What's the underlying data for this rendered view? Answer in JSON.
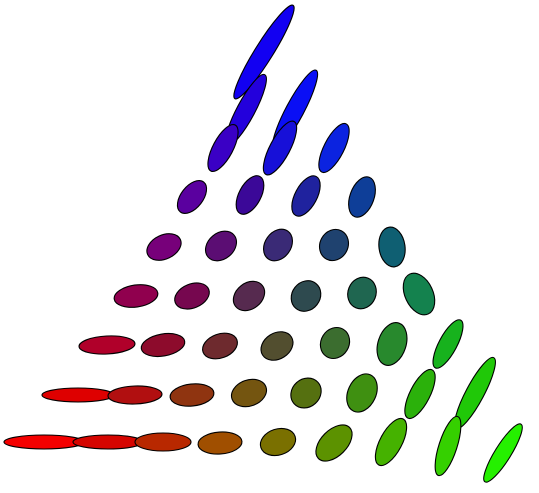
{
  "figure": {
    "background": "#ffffff",
    "outline_color": "#000000",
    "rows": [
      {
        "row": 1,
        "ellipses": [
          {
            "color": "#1200f2"
          }
        ]
      },
      {
        "row": 2,
        "ellipses": [
          {
            "color": "#2300dc"
          },
          {
            "color": "#0a0ff5"
          }
        ]
      },
      {
        "row": 3,
        "ellipses": [
          {
            "color": "#3a00c5"
          },
          {
            "color": "#1710d8"
          },
          {
            "color": "#0b23e0"
          }
        ]
      },
      {
        "row": 4,
        "ellipses": [
          {
            "color": "#5a009f"
          },
          {
            "color": "#3b0898"
          },
          {
            "color": "#1f229e"
          },
          {
            "color": "#0e3e98"
          }
        ]
      },
      {
        "row": 5,
        "ellipses": [
          {
            "color": "#77007a"
          },
          {
            "color": "#5b0d73"
          },
          {
            "color": "#3a2a76"
          },
          {
            "color": "#1f426f"
          },
          {
            "color": "#0f5f72"
          }
        ]
      },
      {
        "row": 6,
        "ellipses": [
          {
            "color": "#90004e"
          },
          {
            "color": "#76074f"
          },
          {
            "color": "#562a4f"
          },
          {
            "color": "#2e4a4f"
          },
          {
            "color": "#1f6650"
          },
          {
            "color": "#14824e"
          }
        ]
      },
      {
        "row": 7,
        "ellipses": [
          {
            "color": "#b0002a"
          },
          {
            "color": "#8d0b2c"
          },
          {
            "color": "#6e2a2e"
          },
          {
            "color": "#524e2f"
          },
          {
            "color": "#3b6d2f"
          },
          {
            "color": "#28892d"
          },
          {
            "color": "#17b21d"
          }
        ]
      },
      {
        "row": 8,
        "ellipses": [
          {
            "color": "#de0000"
          },
          {
            "color": "#b10f10"
          },
          {
            "color": "#8f3410"
          },
          {
            "color": "#745510"
          },
          {
            "color": "#557010"
          },
          {
            "color": "#3f9011"
          },
          {
            "color": "#2bb10b"
          },
          {
            "color": "#20c808"
          }
        ]
      },
      {
        "row": 9,
        "ellipses": [
          {
            "color": "#f40000"
          },
          {
            "color": "#d50500"
          },
          {
            "color": "#b82800"
          },
          {
            "color": "#a04f00"
          },
          {
            "color": "#7a7000"
          },
          {
            "color": "#5c9200"
          },
          {
            "color": "#45b200"
          },
          {
            "color": "#35d000"
          },
          {
            "color": "#25f000"
          }
        ]
      }
    ]
  }
}
